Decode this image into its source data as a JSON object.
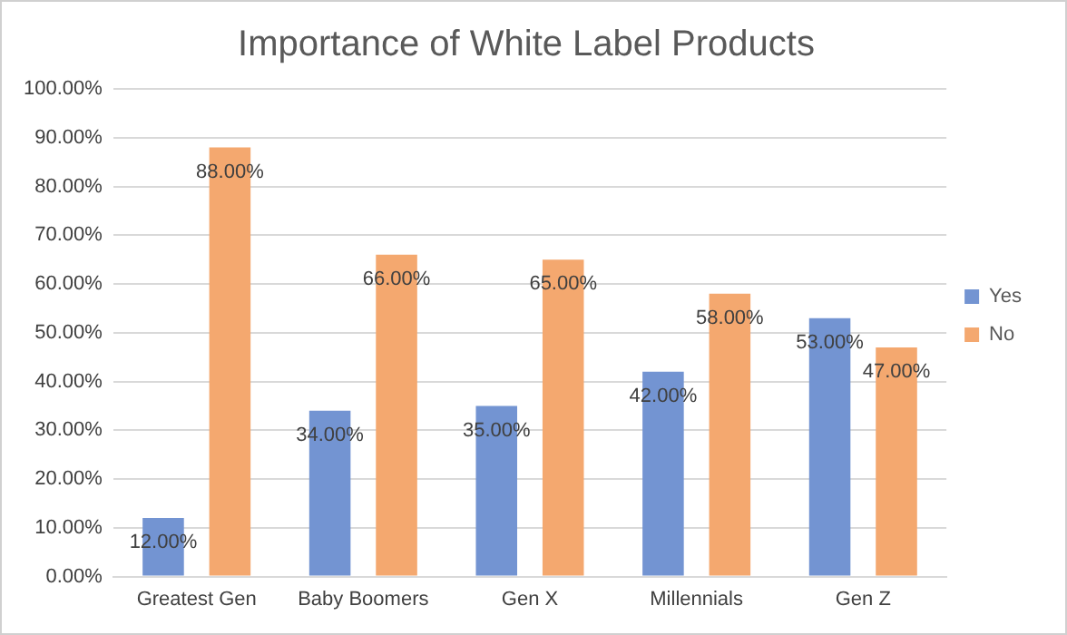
{
  "chart_data": {
    "type": "bar",
    "title": "Importance of White Label Products",
    "categories": [
      "Greatest Gen",
      "Baby Boomers",
      "Gen X",
      "Millennials",
      "Gen Z"
    ],
    "series": [
      {
        "name": "Yes",
        "color": "#7394d2",
        "values": [
          12,
          34,
          35,
          42,
          53
        ],
        "value_labels": [
          "12.00%",
          "34.00%",
          "35.00%",
          "42.00%",
          "53.00%"
        ]
      },
      {
        "name": "No",
        "color": "#f4a86f",
        "values": [
          88,
          66,
          65,
          58,
          47
        ],
        "value_labels": [
          "88.00%",
          "66.00%",
          "65.00%",
          "58.00%",
          "47.00%"
        ]
      }
    ],
    "ylim": [
      0,
      100
    ],
    "yticks": [
      {
        "value": 0,
        "label": "0.00%"
      },
      {
        "value": 10,
        "label": "10.00%"
      },
      {
        "value": 20,
        "label": "20.00%"
      },
      {
        "value": 30,
        "label": "30.00%"
      },
      {
        "value": 40,
        "label": "40.00%"
      },
      {
        "value": 50,
        "label": "50.00%"
      },
      {
        "value": 60,
        "label": "60.00%"
      },
      {
        "value": 70,
        "label": "70.00%"
      },
      {
        "value": 80,
        "label": "80.00%"
      },
      {
        "value": 90,
        "label": "90.00%"
      },
      {
        "value": 100,
        "label": "100.00%"
      }
    ],
    "grid": "y",
    "legend": "right"
  }
}
